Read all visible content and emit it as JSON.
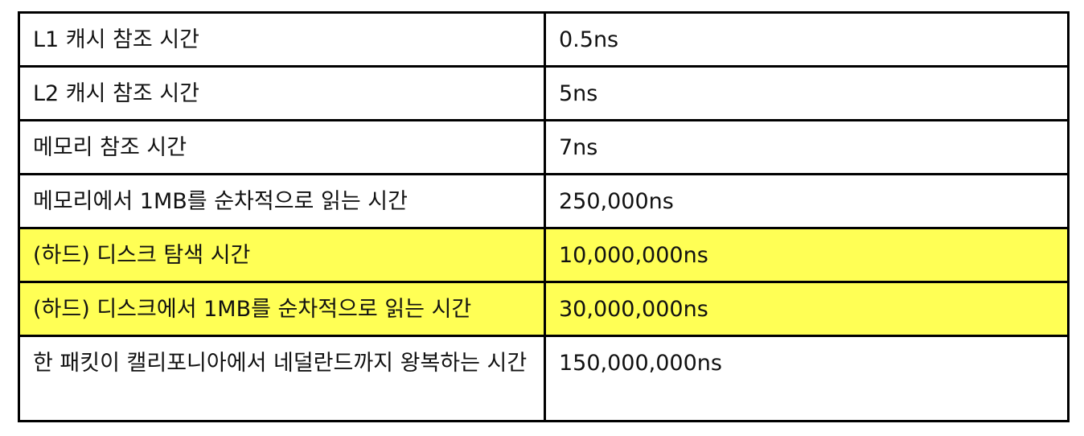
{
  "table": {
    "rows": [
      {
        "operation": "L1 캐시 참조 시간",
        "latency": "0.5ns",
        "highlight": false
      },
      {
        "operation": "L2 캐시 참조 시간",
        "latency": "5ns",
        "highlight": false
      },
      {
        "operation": "메모리 참조 시간",
        "latency": "7ns",
        "highlight": false
      },
      {
        "operation": "메모리에서 1MB를 순차적으로 읽는 시간",
        "latency": "250,000ns",
        "highlight": false
      },
      {
        "operation": "(하드) 디스크 탐색 시간",
        "latency": "10,000,000ns",
        "highlight": true
      },
      {
        "operation": "(하드) 디스크에서 1MB를 순차적으로 읽는 시간",
        "latency": "30,000,000ns",
        "highlight": true
      },
      {
        "operation": "한 패킷이 캘리포니아에서 네덜란드까지 왕복하는 시간",
        "latency": "150,000,000ns",
        "highlight": false
      }
    ]
  },
  "colors": {
    "highlight": "#ffff55",
    "border": "#000000",
    "text": "#111111"
  }
}
